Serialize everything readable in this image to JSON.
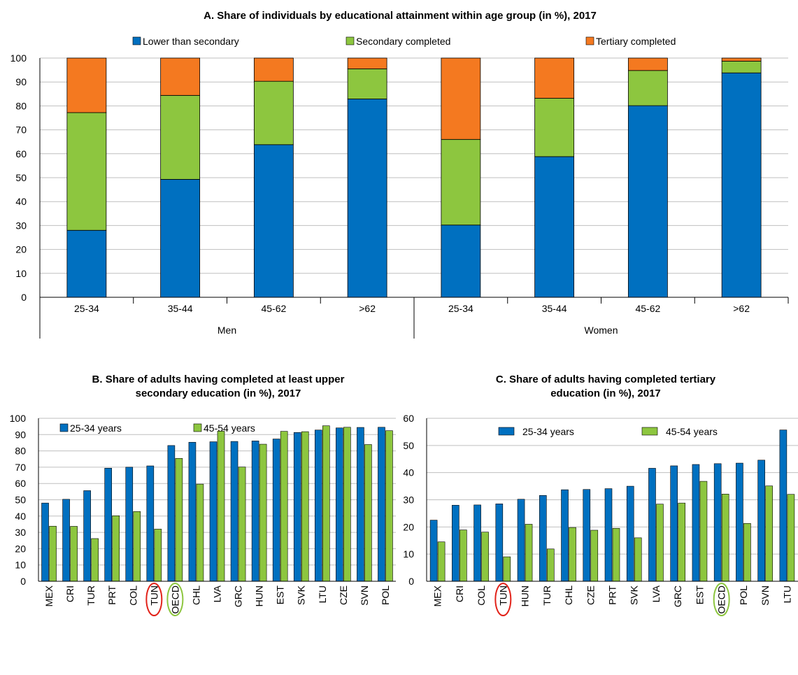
{
  "chart_data": [
    {
      "type": "bar",
      "stacked": true,
      "title": "A. Share of individuals by educational attainment within age group (in %), 2017",
      "categories": [
        "25-34",
        "35-44",
        "45-62",
        ">62",
        "25-34",
        "35-44",
        "45-62",
        ">62"
      ],
      "groups": [
        "Men",
        "Women"
      ],
      "ylim": [
        0,
        100
      ],
      "yticks": [
        0,
        10,
        20,
        30,
        40,
        50,
        60,
        70,
        80,
        90,
        100
      ],
      "legend_position": "top",
      "series": [
        {
          "name": "Lower than secondary",
          "color": "#0070C0",
          "values": [
            28,
            49.3,
            63.8,
            82.9,
            30.2,
            58.8,
            80.1,
            93.8
          ]
        },
        {
          "name": "Secondary completed",
          "color": "#8DC63F",
          "values": [
            49.2,
            35.1,
            26.5,
            12.6,
            35.8,
            24.4,
            14.7,
            4.9
          ]
        },
        {
          "name": "Tertiary completed",
          "color": "#F47920",
          "values": [
            22.8,
            15.6,
            9.7,
            4.5,
            34,
            16.8,
            5.2,
            1.3
          ]
        }
      ]
    },
    {
      "type": "bar",
      "title": "B. Share of adults having completed at least upper secondary education (in %), 2017",
      "title_lines": [
        "B. Share of adults having completed at least upper",
        "secondary education (in %), 2017"
      ],
      "categories": [
        "MEX",
        "CRI",
        "TUR",
        "PRT",
        "COL",
        "TUN",
        "OECD",
        "CHL",
        "LVA",
        "GRC",
        "HUN",
        "EST",
        "SVK",
        "LTU",
        "CZE",
        "SVN",
        "POL"
      ],
      "highlighted": {
        "TUN": "#E2231A",
        "OECD": "#8DC63F"
      },
      "ylim": [
        0,
        100
      ],
      "yticks": [
        0,
        10,
        20,
        30,
        40,
        50,
        60,
        70,
        80,
        90,
        100
      ],
      "legend_position": "top",
      "series": [
        {
          "name": "25-34 years",
          "color": "#0070C0",
          "values": [
            48,
            50.3,
            55.6,
            69.4,
            70,
            70.8,
            83.3,
            85.3,
            85.6,
            85.8,
            86.1,
            87.3,
            91.3,
            92.8,
            94.1,
            94.4,
            94.5
          ]
        },
        {
          "name": "45-54 years",
          "color": "#8DC63F",
          "values": [
            33.8,
            33.7,
            26.2,
            40.2,
            42.8,
            32,
            75.4,
            59.6,
            92.1,
            70.1,
            84.1,
            92,
            91.8,
            95.4,
            94.5,
            83.9,
            92.4
          ]
        }
      ]
    },
    {
      "type": "bar",
      "title": "C. Share of adults having completed tertiary education (in %), 2017",
      "title_lines": [
        "C. Share of adults having completed tertiary",
        "education (in %), 2017"
      ],
      "categories": [
        "MEX",
        "CRI",
        "COL",
        "TUN",
        "HUN",
        "TUR",
        "CHL",
        "CZE",
        "PRT",
        "SVK",
        "LVA",
        "GRC",
        "EST",
        "OECD",
        "POL",
        "SVN",
        "LTU"
      ],
      "highlighted": {
        "TUN": "#E2231A",
        "OECD": "#8DC63F"
      },
      "ylim": [
        0,
        60
      ],
      "yticks": [
        0,
        10,
        20,
        30,
        40,
        50,
        60
      ],
      "legend_position": "top",
      "series": [
        {
          "name": "25-34 years",
          "color": "#0070C0",
          "values": [
            22.5,
            28,
            28.1,
            28.5,
            30.2,
            31.6,
            33.7,
            33.8,
            34.1,
            35,
            41.6,
            42.5,
            43,
            43.3,
            43.5,
            44.6,
            55.7
          ]
        },
        {
          "name": "45-54 years",
          "color": "#8DC63F",
          "values": [
            14.5,
            18.9,
            18.1,
            9,
            21,
            11.9,
            19.8,
            18.8,
            19.5,
            16,
            28.4,
            28.8,
            36.8,
            32.1,
            21.3,
            35.1,
            32
          ]
        }
      ]
    }
  ]
}
